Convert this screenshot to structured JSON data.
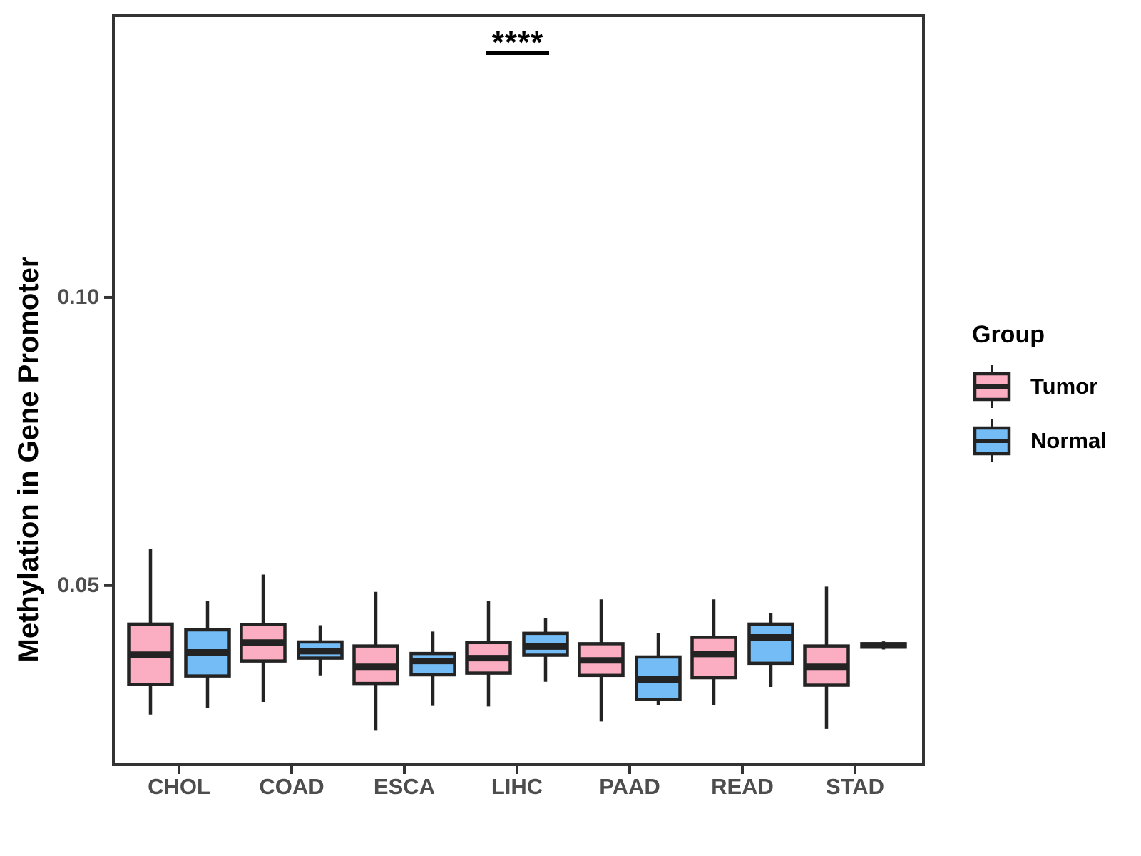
{
  "figure": {
    "background": "#ffffff",
    "panel_border_color": "#333333",
    "axis_text_color": "#4d4d4d",
    "box_outline_color": "#232323",
    "significance": {
      "label": "****",
      "x_group": "LIHC",
      "y": 0.143
    },
    "legend": {
      "title": "Group",
      "items": [
        {
          "label": "Tumor",
          "color": "#FBAEC2",
          "icon": "boxplot-glyph"
        },
        {
          "label": "Normal",
          "color": "#74BCF5",
          "icon": "boxplot-glyph"
        }
      ]
    }
  },
  "chart_data": {
    "type": "boxplot",
    "title": "",
    "xlabel": "",
    "ylabel": "Methylation in Gene Promoter",
    "categories": [
      "CHOL",
      "COAD",
      "ESCA",
      "LIHC",
      "PAAD",
      "READ",
      "STAD"
    ],
    "y_ticks": [
      0.05,
      0.1
    ],
    "y_tick_labels": [
      "0.05",
      "0.10"
    ],
    "ylim": [
      0.0189,
      0.1489
    ],
    "grid": false,
    "legend_position": "right",
    "annotation": {
      "label": "****",
      "x_group": "LIHC",
      "y": 0.143
    },
    "series": [
      {
        "name": "Tumor",
        "color": "#FBAEC2",
        "boxes": [
          {
            "category": "CHOL",
            "whisker_low": 0.0276,
            "q1": 0.0328,
            "median": 0.038,
            "q3": 0.0433,
            "whisker_high": 0.0563
          },
          {
            "category": "COAD",
            "whisker_low": 0.0298,
            "q1": 0.0369,
            "median": 0.0401,
            "q3": 0.0432,
            "whisker_high": 0.0519
          },
          {
            "category": "ESCA",
            "whisker_low": 0.0248,
            "q1": 0.033,
            "median": 0.0359,
            "q3": 0.0395,
            "whisker_high": 0.0489
          },
          {
            "category": "LIHC",
            "whisker_low": 0.029,
            "q1": 0.0348,
            "median": 0.0374,
            "q3": 0.0401,
            "whisker_high": 0.0473
          },
          {
            "category": "PAAD",
            "whisker_low": 0.0264,
            "q1": 0.0344,
            "median": 0.037,
            "q3": 0.0399,
            "whisker_high": 0.0476
          },
          {
            "category": "READ",
            "whisker_low": 0.0293,
            "q1": 0.034,
            "median": 0.0381,
            "q3": 0.041,
            "whisker_high": 0.0476
          },
          {
            "category": "STAD",
            "whisker_low": 0.0251,
            "q1": 0.0327,
            "median": 0.0359,
            "q3": 0.0395,
            "whisker_high": 0.0498
          }
        ]
      },
      {
        "name": "Normal",
        "color": "#74BCF5",
        "boxes": [
          {
            "category": "CHOL",
            "whisker_low": 0.0288,
            "q1": 0.0343,
            "median": 0.0384,
            "q3": 0.0423,
            "whisker_high": 0.0473
          },
          {
            "category": "COAD",
            "whisker_low": 0.0344,
            "q1": 0.0374,
            "median": 0.0386,
            "q3": 0.0402,
            "whisker_high": 0.0431
          },
          {
            "category": "ESCA",
            "whisker_low": 0.0291,
            "q1": 0.0345,
            "median": 0.0369,
            "q3": 0.0382,
            "whisker_high": 0.042
          },
          {
            "category": "LIHC",
            "whisker_low": 0.0333,
            "q1": 0.0379,
            "median": 0.0394,
            "q3": 0.0417,
            "whisker_high": 0.0443
          },
          {
            "category": "PAAD",
            "whisker_low": 0.0293,
            "q1": 0.0302,
            "median": 0.0337,
            "q3": 0.0376,
            "whisker_high": 0.0417
          },
          {
            "category": "READ",
            "whisker_low": 0.0324,
            "q1": 0.0365,
            "median": 0.041,
            "q3": 0.0433,
            "whisker_high": 0.0452
          },
          {
            "category": "STAD",
            "whisker_low": 0.0389,
            "q1": 0.0393,
            "median": 0.0396,
            "q3": 0.0399,
            "whisker_high": 0.0403
          }
        ]
      }
    ]
  }
}
